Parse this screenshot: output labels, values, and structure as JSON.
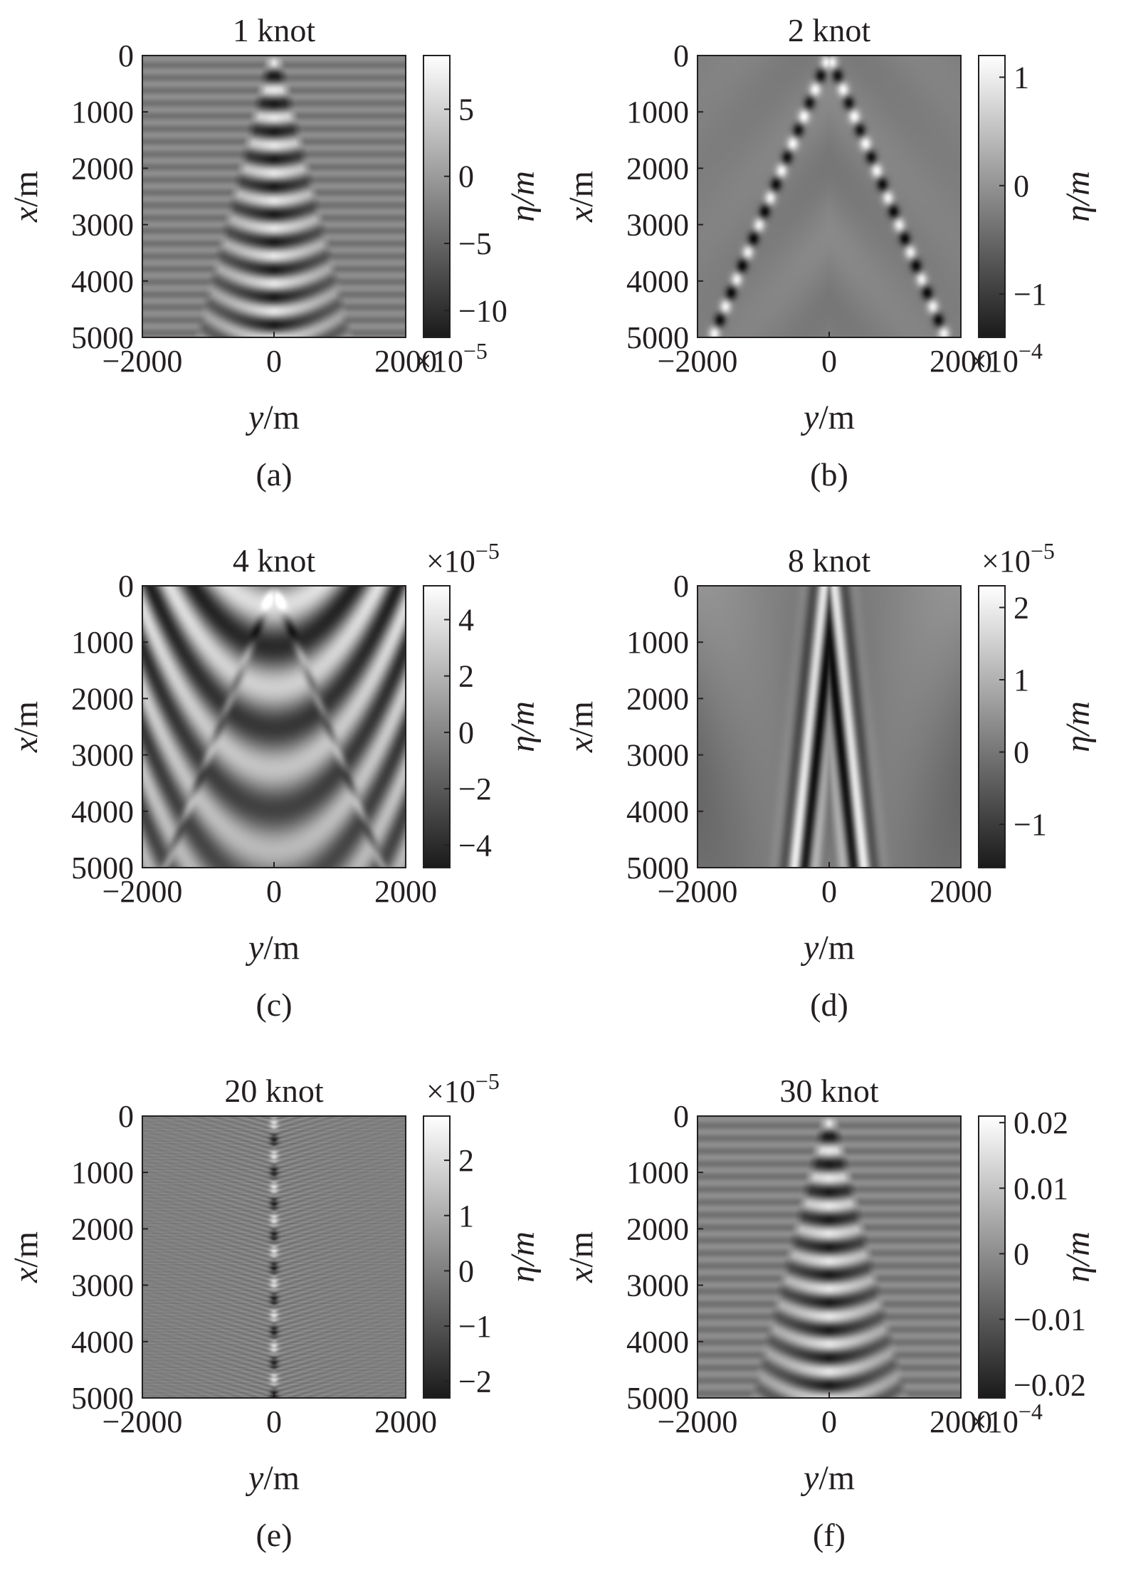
{
  "figure": {
    "panels": [
      {
        "id": "a",
        "title": "1 knot",
        "caption": "(a)",
        "xlabel_var": "y",
        "xlabel_unit": "/m",
        "ylabel_var": "x",
        "ylabel_unit": "/m",
        "xticks": [
          "−2000",
          "0",
          "2000"
        ],
        "yticks": [
          "0",
          "1000",
          "2000",
          "3000",
          "4000",
          "5000"
        ],
        "cbar_label": "η/m",
        "cbar_ticks": [
          "5",
          "0",
          "−5",
          "−10"
        ],
        "cbar_exponent_base": "×10",
        "cbar_exponent_power": "−5",
        "pattern": "ripple"
      },
      {
        "id": "b",
        "title": "2 knot",
        "caption": "(b)",
        "xlabel_var": "y",
        "xlabel_unit": "/m",
        "ylabel_var": "x",
        "ylabel_unit": "/m",
        "xticks": [
          "−2000",
          "0",
          "2000"
        ],
        "yticks": [
          "0",
          "1000",
          "2000",
          "3000",
          "4000",
          "5000"
        ],
        "cbar_label": "η/m",
        "cbar_ticks": [
          "1",
          "0",
          "−1"
        ],
        "cbar_exponent_base": "×10",
        "cbar_exponent_power": "−4",
        "pattern": "kelvin"
      },
      {
        "id": "c",
        "title": "4 knot",
        "caption": "(c)",
        "xlabel_var": "y",
        "xlabel_unit": "/m",
        "ylabel_var": "x",
        "ylabel_unit": "/m",
        "xticks": [
          "−2000",
          "0",
          "2000"
        ],
        "yticks": [
          "0",
          "1000",
          "2000",
          "3000",
          "4000",
          "5000"
        ],
        "cbar_label": "η/m",
        "cbar_ticks": [
          "4",
          "2",
          "0",
          "−2",
          "−4"
        ],
        "cbar_exponent_base": "×10",
        "cbar_exponent_power": "−5",
        "pattern": "broad"
      },
      {
        "id": "d",
        "title": "8 knot",
        "caption": "(d)",
        "xlabel_var": "y",
        "xlabel_unit": "/m",
        "ylabel_var": "x",
        "ylabel_unit": "/m",
        "xticks": [
          "−2000",
          "0",
          "2000"
        ],
        "yticks": [
          "0",
          "1000",
          "2000",
          "3000",
          "4000",
          "5000"
        ],
        "cbar_label": "η/m",
        "cbar_ticks": [
          "2",
          "1",
          "0",
          "−1"
        ],
        "cbar_exponent_base": "×10",
        "cbar_exponent_power": "−5",
        "pattern": "narrow"
      },
      {
        "id": "e",
        "title": "20 knot",
        "caption": "(e)",
        "xlabel_var": "y",
        "xlabel_unit": "/m",
        "ylabel_var": "x",
        "ylabel_unit": "/m",
        "xticks": [
          "−2000",
          "0",
          "2000"
        ],
        "yticks": [
          "0",
          "1000",
          "2000",
          "3000",
          "4000",
          "5000"
        ],
        "cbar_label": "η/m",
        "cbar_ticks": [
          "2",
          "1",
          "0",
          "−1",
          "−2"
        ],
        "cbar_exponent_base": "×10",
        "cbar_exponent_power": "−5",
        "pattern": "fine"
      },
      {
        "id": "f",
        "title": "30 knot",
        "caption": "(f)",
        "xlabel_var": "y",
        "xlabel_unit": "/m",
        "ylabel_var": "x",
        "ylabel_unit": "/m",
        "xticks": [
          "−2000",
          "0",
          "2000"
        ],
        "yticks": [
          "0",
          "1000",
          "2000",
          "3000",
          "4000",
          "5000"
        ],
        "cbar_label": "η/m",
        "cbar_ticks": [
          "0.02",
          "0.01",
          "0",
          "−0.01",
          "−0.02"
        ],
        "cbar_exponent_base": "×10",
        "cbar_exponent_power": "−4",
        "pattern": "ripple"
      }
    ]
  },
  "chart_data": [
    {
      "type": "heatmap",
      "title": "1 knot",
      "xlabel": "y/m",
      "ylabel": "x/m",
      "xlim": [
        -2000,
        2000
      ],
      "ylim": [
        0,
        5000
      ],
      "y_reversed": true,
      "x_ticks": [
        -2000,
        0,
        2000
      ],
      "y_ticks": [
        0,
        1000,
        2000,
        3000,
        4000,
        5000
      ],
      "colorbar": {
        "label": "η/m",
        "ticks": [
          5,
          0,
          -5,
          -10
        ],
        "range": [
          -12,
          9
        ],
        "multiplier": "×10^−5"
      }
    },
    {
      "type": "heatmap",
      "title": "2 knot",
      "xlabel": "y/m",
      "ylabel": "x/m",
      "xlim": [
        -2000,
        2000
      ],
      "ylim": [
        0,
        5000
      ],
      "y_reversed": true,
      "x_ticks": [
        -2000,
        0,
        2000
      ],
      "y_ticks": [
        0,
        1000,
        2000,
        3000,
        4000,
        5000
      ],
      "colorbar": {
        "label": "η/m",
        "ticks": [
          1,
          0,
          -1
        ],
        "range": [
          -1.4,
          1.2
        ],
        "multiplier": "×10^−4"
      }
    },
    {
      "type": "heatmap",
      "title": "4 knot",
      "xlabel": "y/m",
      "ylabel": "x/m",
      "xlim": [
        -2000,
        2000
      ],
      "ylim": [
        0,
        5000
      ],
      "y_reversed": true,
      "x_ticks": [
        -2000,
        0,
        2000
      ],
      "y_ticks": [
        0,
        1000,
        2000,
        3000,
        4000,
        5000
      ],
      "colorbar": {
        "label": "η/m",
        "ticks": [
          4,
          2,
          0,
          -2,
          -4
        ],
        "range": [
          -4.8,
          5.2
        ],
        "multiplier": "×10^−5"
      }
    },
    {
      "type": "heatmap",
      "title": "8 knot",
      "xlabel": "y/m",
      "ylabel": "x/m",
      "xlim": [
        -2000,
        2000
      ],
      "ylim": [
        0,
        5000
      ],
      "y_reversed": true,
      "x_ticks": [
        -2000,
        0,
        2000
      ],
      "y_ticks": [
        0,
        1000,
        2000,
        3000,
        4000,
        5000
      ],
      "colorbar": {
        "label": "η/m",
        "ticks": [
          2,
          1,
          0,
          -1
        ],
        "range": [
          -1.6,
          2.3
        ],
        "multiplier": "×10^−5"
      }
    },
    {
      "type": "heatmap",
      "title": "20 knot",
      "xlabel": "y/m",
      "ylabel": "x/m",
      "xlim": [
        -2000,
        2000
      ],
      "ylim": [
        0,
        5000
      ],
      "y_reversed": true,
      "x_ticks": [
        -2000,
        0,
        2000
      ],
      "y_ticks": [
        0,
        1000,
        2000,
        3000,
        4000,
        5000
      ],
      "colorbar": {
        "label": "η/m",
        "ticks": [
          2,
          1,
          0,
          -1,
          -2
        ],
        "range": [
          -2.3,
          2.8
        ],
        "multiplier": "×10^−5"
      }
    },
    {
      "type": "heatmap",
      "title": "30 knot",
      "xlabel": "y/m",
      "ylabel": "x/m",
      "xlim": [
        -2000,
        2000
      ],
      "ylim": [
        0,
        5000
      ],
      "y_reversed": true,
      "x_ticks": [
        -2000,
        0,
        2000
      ],
      "y_ticks": [
        0,
        1000,
        2000,
        3000,
        4000,
        5000
      ],
      "colorbar": {
        "label": "η/m",
        "ticks": [
          0.02,
          0.01,
          0,
          -0.01,
          -0.02
        ],
        "range": [
          -0.022,
          0.021
        ],
        "multiplier": "×10^−4"
      }
    }
  ]
}
